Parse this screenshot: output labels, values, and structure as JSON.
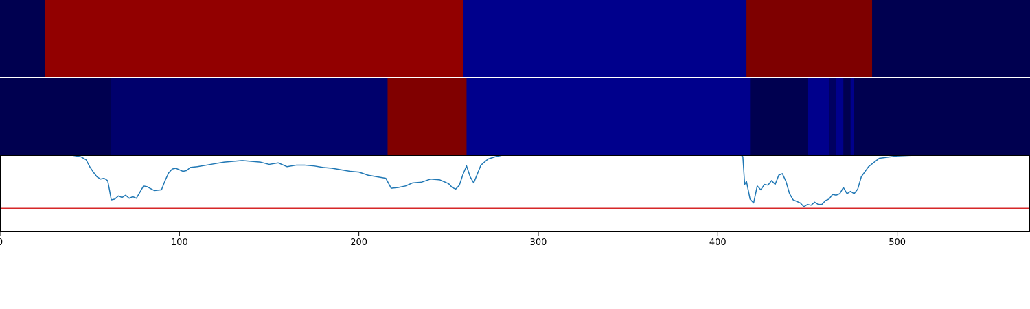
{
  "chart_data": [
    {
      "type": "heatmap",
      "title": "",
      "xlim": [
        0,
        574
      ],
      "segments": [
        {
          "start": 0,
          "end": 25,
          "color": "#000050"
        },
        {
          "start": 25,
          "end": 258,
          "color": "#920000"
        },
        {
          "start": 258,
          "end": 416,
          "color": "#00008c"
        },
        {
          "start": 416,
          "end": 486,
          "color": "#7e0000"
        },
        {
          "start": 486,
          "end": 574,
          "color": "#000050"
        }
      ]
    },
    {
      "type": "heatmap",
      "title": "",
      "xlim": [
        0,
        574
      ],
      "segments": [
        {
          "start": 0,
          "end": 62,
          "color": "#000050"
        },
        {
          "start": 62,
          "end": 216,
          "color": "#00006c"
        },
        {
          "start": 216,
          "end": 260,
          "color": "#800000"
        },
        {
          "start": 260,
          "end": 418,
          "color": "#00008c"
        },
        {
          "start": 418,
          "end": 450,
          "color": "#000050"
        },
        {
          "start": 450,
          "end": 462,
          "color": "#00008c"
        },
        {
          "start": 462,
          "end": 466,
          "color": "#000060"
        },
        {
          "start": 466,
          "end": 470,
          "color": "#00008c"
        },
        {
          "start": 470,
          "end": 474,
          "color": "#000050"
        },
        {
          "start": 474,
          "end": 476,
          "color": "#00008c"
        },
        {
          "start": 476,
          "end": 574,
          "color": "#000050"
        }
      ]
    },
    {
      "type": "line",
      "title": "",
      "xlabel": "",
      "ylabel": "",
      "xlim": [
        0,
        574
      ],
      "ylim": [
        0,
        1
      ],
      "xticks": [
        0,
        100,
        200,
        300,
        400,
        500
      ],
      "line_color": "#1f77b4",
      "threshold": {
        "value": 0.31,
        "color": "#d62728"
      },
      "series": [
        {
          "x": [
            0,
            40,
            45,
            48,
            50,
            52,
            54,
            56,
            58,
            60,
            61,
            62,
            64,
            66,
            68,
            70,
            72,
            74,
            76,
            78,
            80,
            82,
            86,
            90,
            92,
            94,
            96,
            98,
            100,
            102,
            104,
            106,
            110,
            115,
            120,
            125,
            130,
            135,
            140,
            145,
            150,
            155,
            160,
            165,
            170,
            175,
            180,
            185,
            190,
            195,
            200,
            205,
            210,
            215,
            218,
            222,
            226,
            230,
            235,
            240,
            245,
            250,
            252,
            254,
            256,
            258,
            260,
            262,
            264,
            268,
            272,
            276,
            280,
            300,
            350,
            400,
            413,
            414,
            415,
            416,
            418,
            420,
            422,
            424,
            426,
            428,
            430,
            432,
            434,
            436,
            438,
            440,
            442,
            444,
            446,
            448,
            450,
            452,
            454,
            456,
            458,
            460,
            462,
            464,
            466,
            468,
            470,
            472,
            474,
            476,
            478,
            480,
            484,
            490,
            500,
            510,
            574
          ],
          "y": [
            1.0,
            1.0,
            0.98,
            0.94,
            0.85,
            0.78,
            0.72,
            0.69,
            0.7,
            0.67,
            0.55,
            0.42,
            0.43,
            0.47,
            0.45,
            0.48,
            0.44,
            0.46,
            0.44,
            0.52,
            0.6,
            0.59,
            0.54,
            0.55,
            0.67,
            0.77,
            0.82,
            0.83,
            0.81,
            0.79,
            0.8,
            0.84,
            0.85,
            0.87,
            0.89,
            0.91,
            0.92,
            0.93,
            0.92,
            0.91,
            0.88,
            0.9,
            0.85,
            0.87,
            0.87,
            0.86,
            0.84,
            0.83,
            0.81,
            0.79,
            0.78,
            0.74,
            0.72,
            0.7,
            0.57,
            0.58,
            0.6,
            0.64,
            0.65,
            0.69,
            0.68,
            0.63,
            0.58,
            0.56,
            0.61,
            0.75,
            0.86,
            0.72,
            0.64,
            0.87,
            0.95,
            0.98,
            1.0,
            1.0,
            1.0,
            1.0,
            1.0,
            0.98,
            0.62,
            0.66,
            0.43,
            0.38,
            0.6,
            0.55,
            0.62,
            0.61,
            0.67,
            0.62,
            0.74,
            0.76,
            0.66,
            0.5,
            0.42,
            0.4,
            0.38,
            0.33,
            0.36,
            0.35,
            0.39,
            0.36,
            0.36,
            0.41,
            0.43,
            0.49,
            0.48,
            0.5,
            0.58,
            0.5,
            0.53,
            0.5,
            0.56,
            0.72,
            0.85,
            0.96,
            0.99,
            1.0,
            1.0
          ]
        }
      ]
    }
  ]
}
